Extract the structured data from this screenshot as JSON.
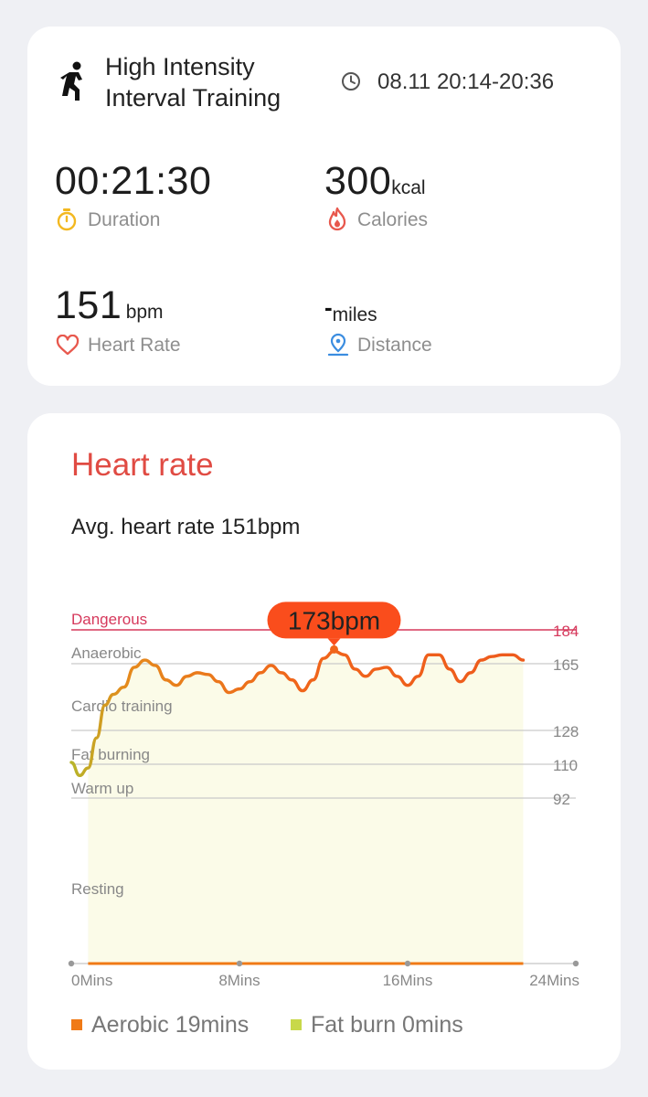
{
  "summary": {
    "workout_icon": "running-person-icon",
    "title_line1": "High Intensity",
    "title_line2": "Interval Training",
    "clock_icon": "clock-icon",
    "time_range": "08.11 20:14-20:36",
    "duration": {
      "value": "00:21:30",
      "label": "Duration",
      "icon": "stopwatch-icon",
      "color": "#f3b820"
    },
    "calories": {
      "value": "300",
      "unit": "kcal",
      "label": "Calories",
      "icon": "flame-icon",
      "color": "#e8584d"
    },
    "heart_rate": {
      "value": "151",
      "unit": "bpm",
      "label": "Heart Rate",
      "icon": "heart-icon",
      "color": "#e8584d"
    },
    "distance": {
      "value": "-",
      "unit": "miles",
      "label": "Distance",
      "icon": "location-pin-icon",
      "color": "#3b8de0"
    }
  },
  "heart_rate_card": {
    "title": "Heart rate",
    "avg_text": "Avg. heart rate 151bpm",
    "max_callout": "173bpm",
    "legend": [
      {
        "label": "Aerobic 19mins",
        "color": "#f07a16"
      },
      {
        "label": "Fat burn 0mins",
        "color": "#c8d84a"
      }
    ]
  },
  "chart_data": {
    "type": "line",
    "xlabel": "",
    "ylabel": "",
    "x_ticks": [
      "0Mins",
      "8Mins",
      "16Mins",
      "24Mins"
    ],
    "xlim": [
      0,
      24
    ],
    "zones": [
      {
        "name": "Dangerous",
        "threshold": 184
      },
      {
        "name": "Anaerobic",
        "threshold": 165
      },
      {
        "name": "Cardio training",
        "threshold": null
      },
      {
        "name": "Fat burning",
        "threshold": 128
      },
      {
        "name": "Warm up",
        "threshold": 110
      },
      {
        "name": "Resting",
        "threshold": 92
      }
    ],
    "y_ticks": [
      184,
      165,
      128,
      110,
      92
    ],
    "max_value": 173,
    "series": [
      {
        "x": [
          0,
          0.4,
          0.8,
          1.2,
          1.6,
          2.0,
          2.5,
          3.0,
          3.5,
          4.0,
          4.5,
          5.0,
          5.5,
          6.0,
          6.5,
          7.0,
          7.5,
          8.0,
          8.5,
          9.0,
          9.5,
          10.0,
          10.5,
          11.0,
          11.5,
          12.0,
          12.5,
          13.0,
          13.5,
          14.0,
          14.5,
          15.0,
          15.5,
          16.0,
          16.5,
          17.0,
          17.5,
          18.0,
          18.5,
          19.0,
          19.5,
          20.0,
          20.5,
          21.0,
          21.5
        ],
        "values": [
          111,
          104,
          108,
          124,
          142,
          148,
          152,
          163,
          167,
          164,
          156,
          153,
          158,
          160,
          159,
          155,
          149,
          151,
          155,
          160,
          164,
          160,
          156,
          150,
          156,
          168,
          172,
          170,
          162,
          158,
          162,
          163,
          158,
          153,
          158,
          170,
          170,
          162,
          155,
          160,
          167,
          169,
          170,
          170,
          167
        ]
      }
    ]
  }
}
